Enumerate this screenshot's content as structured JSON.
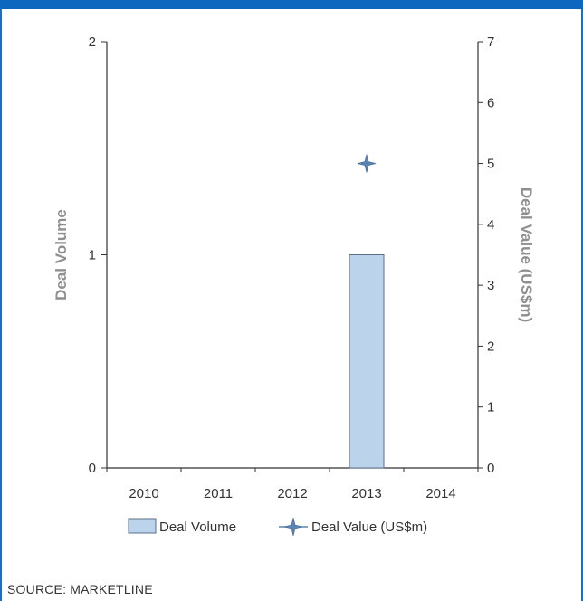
{
  "chart_data": {
    "type": "bar",
    "categories": [
      "2010",
      "2011",
      "2012",
      "2013",
      "2014"
    ],
    "series": [
      {
        "name": "Deal Volume",
        "type": "bar",
        "axis": "left",
        "values": [
          0,
          0,
          0,
          1,
          0
        ],
        "color": "#bcd3ec"
      },
      {
        "name": "Deal Value (US$m)",
        "type": "scatter",
        "axis": "right",
        "values": [
          null,
          null,
          null,
          5,
          null
        ],
        "color": "#5b86b4"
      }
    ],
    "ylabel": "Deal Volume",
    "y2label": "Deal Value (US$m)",
    "ylim": [
      0,
      2
    ],
    "y2lim": [
      0,
      7
    ],
    "yticks": [
      "0",
      "1",
      "2"
    ],
    "y2ticks": [
      "0",
      "1",
      "2",
      "3",
      "4",
      "5",
      "6",
      "7"
    ],
    "legend_position": "bottom"
  },
  "source": "SOURCE: MARKETLINE"
}
